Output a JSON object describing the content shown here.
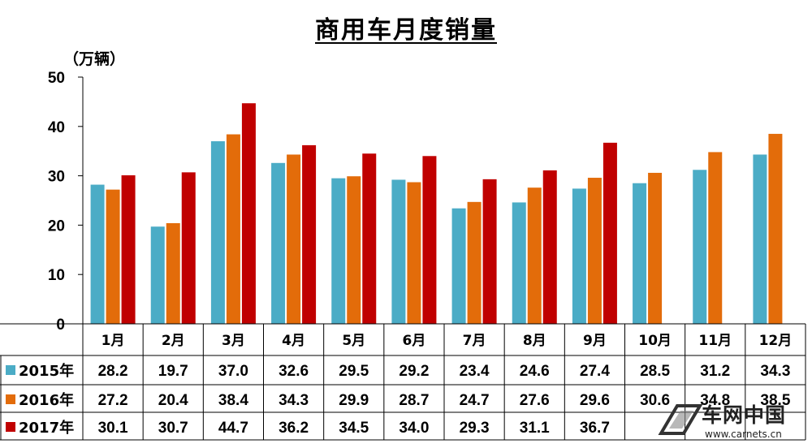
{
  "chart_data": {
    "type": "bar",
    "title": "商用车月度销量",
    "unit_label": "（万辆）",
    "categories": [
      "1月",
      "2月",
      "3月",
      "4月",
      "5月",
      "6月",
      "7月",
      "8月",
      "9月",
      "10月",
      "11月",
      "12月"
    ],
    "ylim": [
      0,
      50
    ],
    "yticks": [
      0,
      10,
      20,
      30,
      40,
      50
    ],
    "grid": false,
    "series": [
      {
        "name": "2015年",
        "color": "#4bacc6",
        "values": [
          28.2,
          19.7,
          37.0,
          32.6,
          29.5,
          29.2,
          23.4,
          24.6,
          27.4,
          28.5,
          31.2,
          34.3
        ],
        "labels": [
          "28.2",
          "19.7",
          "37.0",
          "32.6",
          "29.5",
          "29.2",
          "23.4",
          "24.6",
          "27.4",
          "28.5",
          "31.2",
          "34.3"
        ]
      },
      {
        "name": "2016年",
        "color": "#e36c0a",
        "values": [
          27.2,
          20.4,
          38.4,
          34.3,
          29.9,
          28.7,
          24.7,
          27.6,
          29.6,
          30.6,
          34.8,
          38.5
        ],
        "labels": [
          "27.2",
          "20.4",
          "38.4",
          "34.3",
          "29.9",
          "28.7",
          "24.7",
          "27.6",
          "29.6",
          "30.6",
          "34.8",
          "38.5"
        ]
      },
      {
        "name": "2017年",
        "color": "#c00000",
        "values": [
          30.1,
          30.7,
          44.7,
          36.2,
          34.5,
          34.0,
          29.3,
          31.1,
          36.7,
          null,
          null,
          null
        ],
        "labels": [
          "30.1",
          "30.7",
          "44.7",
          "36.2",
          "34.5",
          "34.0",
          "29.3",
          "31.1",
          "36.7",
          "",
          "",
          ""
        ]
      }
    ]
  },
  "watermark": {
    "text": "车网中国",
    "url": "www.carnets.cn"
  }
}
